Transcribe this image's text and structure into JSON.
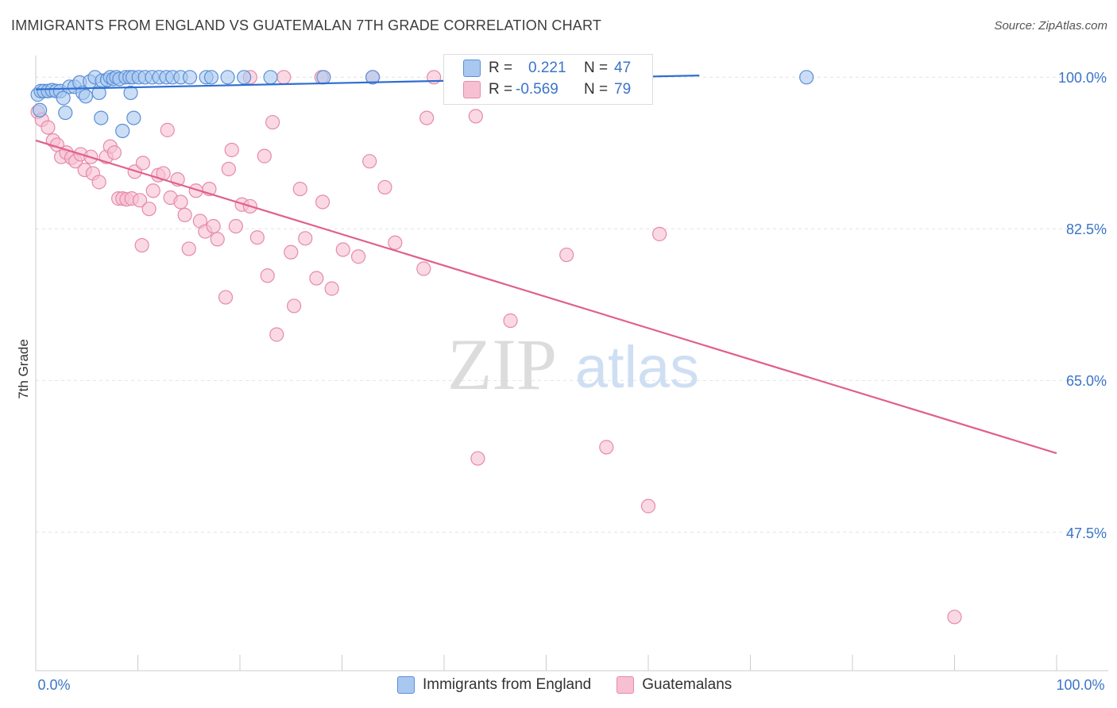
{
  "title": "IMMIGRANTS FROM ENGLAND VS GUATEMALAN 7TH GRADE CORRELATION CHART",
  "source": "Source: ZipAtlas.com",
  "watermark": {
    "zip": "ZIP",
    "atlas": "atlas"
  },
  "colors": {
    "blue_fill": "#a9c8f0",
    "blue_stroke": "#5b8fd6",
    "blue_line": "#2d6fd1",
    "pink_fill": "#f7c0d2",
    "pink_stroke": "#e68aaa",
    "pink_line": "#e0608f",
    "axis_text": "#3b74c9",
    "grid": "#e3e3e3"
  },
  "stats": {
    "england": {
      "r_label": "R =",
      "r": "0.221",
      "n_label": "N =",
      "n": "47"
    },
    "guatemalan": {
      "r_label": "R =",
      "r": "-0.569",
      "n_label": "N =",
      "n": "79"
    }
  },
  "legend": {
    "england": "Immigrants from England",
    "guatemalan": "Guatemalans"
  },
  "chart_data": {
    "type": "scatter",
    "title": "IMMIGRANTS FROM ENGLAND VS GUATEMALAN 7TH GRADE CORRELATION CHART",
    "xlabel": "",
    "ylabel": "7th Grade",
    "xlim": [
      0,
      100
    ],
    "ylim": [
      31.5,
      102.5
    ],
    "x_tick_labels": [
      "0.0%",
      "100.0%"
    ],
    "y_ticks": [
      47.5,
      65.0,
      82.5,
      100.0
    ],
    "y_tick_labels": [
      "47.5%",
      "65.0%",
      "82.5%",
      "100.0%"
    ],
    "grid": true,
    "series": [
      {
        "name": "Immigrants from England",
        "color": "#5b8fd6",
        "trend": {
          "x0": 0,
          "y0": 98.6,
          "x1": 65,
          "y1": 100.2
        },
        "points": [
          [
            0.2,
            98.0
          ],
          [
            0.4,
            96.2
          ],
          [
            0.5,
            98.4
          ],
          [
            0.8,
            98.4
          ],
          [
            1.2,
            98.4
          ],
          [
            1.6,
            98.5
          ],
          [
            2.0,
            98.4
          ],
          [
            2.4,
            98.4
          ],
          [
            2.7,
            97.6
          ],
          [
            2.9,
            95.9
          ],
          [
            3.3,
            98.9
          ],
          [
            3.8,
            98.9
          ],
          [
            4.3,
            99.4
          ],
          [
            4.6,
            98.2
          ],
          [
            4.9,
            97.8
          ],
          [
            5.3,
            99.5
          ],
          [
            5.8,
            100.0
          ],
          [
            6.2,
            98.2
          ],
          [
            6.5,
            99.6
          ],
          [
            6.4,
            95.3
          ],
          [
            7.0,
            99.7
          ],
          [
            7.3,
            100.0
          ],
          [
            7.6,
            99.8
          ],
          [
            7.9,
            100.0
          ],
          [
            8.2,
            99.8
          ],
          [
            8.5,
            93.8
          ],
          [
            8.8,
            100.0
          ],
          [
            9.2,
            100.0
          ],
          [
            9.5,
            100.0
          ],
          [
            9.3,
            98.2
          ],
          [
            9.6,
            95.3
          ],
          [
            10.1,
            100.0
          ],
          [
            10.7,
            100.0
          ],
          [
            11.4,
            100.0
          ],
          [
            12.1,
            100.0
          ],
          [
            12.8,
            100.0
          ],
          [
            13.4,
            100.0
          ],
          [
            14.2,
            100.0
          ],
          [
            15.1,
            100.0
          ],
          [
            16.7,
            100.0
          ],
          [
            17.2,
            100.0
          ],
          [
            18.8,
            100.0
          ],
          [
            20.4,
            100.0
          ],
          [
            23.0,
            100.0
          ],
          [
            28.2,
            100.0
          ],
          [
            33.0,
            100.0
          ],
          [
            75.5,
            100.0
          ]
        ]
      },
      {
        "name": "Guatemalans",
        "color": "#e68aaa",
        "trend": {
          "x0": 0,
          "y0": 92.7,
          "x1": 100,
          "y1": 56.6
        },
        "points": [
          [
            0.2,
            96.0
          ],
          [
            0.6,
            95.1
          ],
          [
            1.2,
            94.2
          ],
          [
            1.7,
            92.7
          ],
          [
            2.1,
            92.2
          ],
          [
            2.5,
            90.8
          ],
          [
            3.0,
            91.3
          ],
          [
            3.5,
            90.7
          ],
          [
            3.9,
            90.3
          ],
          [
            4.4,
            91.1
          ],
          [
            4.8,
            89.3
          ],
          [
            5.4,
            90.8
          ],
          [
            5.6,
            88.9
          ],
          [
            6.2,
            87.9
          ],
          [
            6.9,
            90.8
          ],
          [
            7.3,
            92.0
          ],
          [
            7.7,
            91.3
          ],
          [
            8.1,
            86.0
          ],
          [
            8.5,
            86.0
          ],
          [
            8.9,
            85.9
          ],
          [
            9.4,
            86.0
          ],
          [
            9.7,
            89.1
          ],
          [
            10.2,
            85.8
          ],
          [
            10.5,
            90.1
          ],
          [
            10.4,
            80.6
          ],
          [
            11.1,
            84.8
          ],
          [
            11.5,
            86.9
          ],
          [
            12.0,
            88.7
          ],
          [
            12.5,
            88.9
          ],
          [
            12.9,
            93.9
          ],
          [
            13.2,
            86.1
          ],
          [
            13.9,
            88.2
          ],
          [
            14.2,
            85.6
          ],
          [
            14.6,
            84.1
          ],
          [
            15.0,
            80.2
          ],
          [
            15.7,
            86.9
          ],
          [
            16.1,
            83.4
          ],
          [
            16.6,
            82.2
          ],
          [
            17.0,
            87.1
          ],
          [
            17.4,
            82.8
          ],
          [
            17.8,
            81.3
          ],
          [
            18.6,
            74.6
          ],
          [
            18.9,
            89.4
          ],
          [
            19.2,
            91.6
          ],
          [
            19.6,
            82.8
          ],
          [
            20.2,
            85.3
          ],
          [
            21.0,
            85.1
          ],
          [
            21.7,
            81.5
          ],
          [
            22.4,
            90.9
          ],
          [
            22.7,
            77.1
          ],
          [
            23.2,
            94.8
          ],
          [
            23.6,
            70.3
          ],
          [
            25.0,
            79.8
          ],
          [
            25.3,
            73.6
          ],
          [
            25.9,
            87.1
          ],
          [
            26.4,
            81.4
          ],
          [
            27.5,
            76.8
          ],
          [
            28.1,
            85.6
          ],
          [
            29.0,
            75.6
          ],
          [
            30.1,
            80.1
          ],
          [
            31.6,
            79.3
          ],
          [
            32.7,
            90.3
          ],
          [
            34.2,
            87.3
          ],
          [
            35.2,
            80.9
          ],
          [
            38.0,
            77.9
          ],
          [
            38.3,
            95.3
          ],
          [
            43.1,
            95.5
          ],
          [
            43.3,
            56.0
          ],
          [
            46.5,
            71.9
          ],
          [
            52.0,
            79.5
          ],
          [
            55.9,
            57.3
          ],
          [
            60.0,
            50.5
          ],
          [
            61.1,
            81.9
          ],
          [
            90.0,
            37.7
          ],
          [
            21.0,
            100.0
          ],
          [
            24.3,
            100.0
          ],
          [
            28.0,
            100.0
          ],
          [
            33.0,
            100.0
          ],
          [
            39.0,
            100.0
          ]
        ]
      }
    ]
  }
}
